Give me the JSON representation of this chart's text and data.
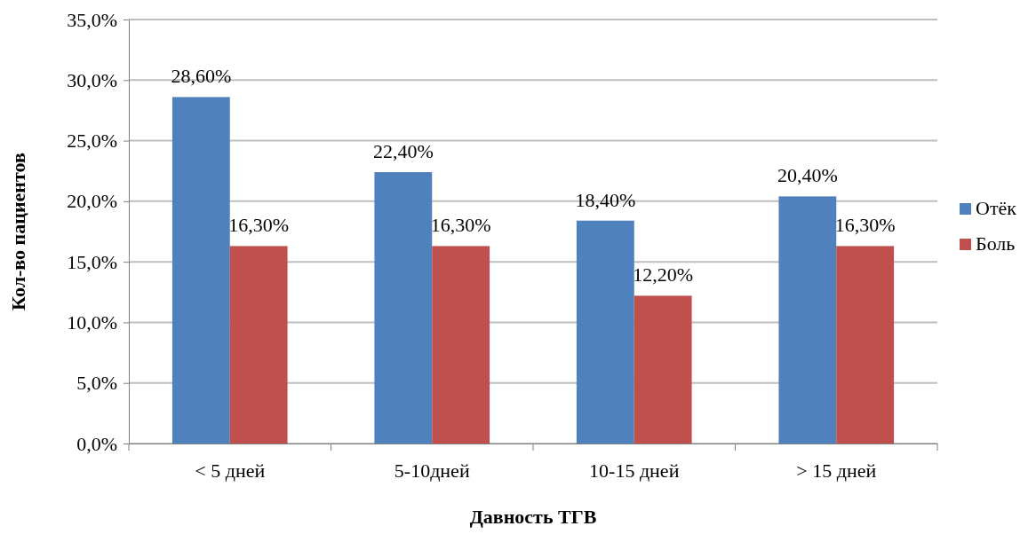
{
  "chart_data": {
    "type": "bar",
    "xlabel": "Давность ТГВ",
    "ylabel": "Кол-во пациентов",
    "categories": [
      "< 5 дней",
      "5-10дней",
      "10-15 дней",
      "> 15 дней"
    ],
    "series": [
      {
        "name": "Отёк",
        "color": "#4f81bd",
        "values": [
          28.6,
          22.4,
          18.4,
          20.4
        ],
        "value_labels": [
          "28,60%",
          "22,40%",
          "18,40%",
          "20,40%"
        ]
      },
      {
        "name": "Боль",
        "color": "#c0504d",
        "values": [
          16.3,
          16.3,
          12.2,
          16.3
        ],
        "value_labels": [
          "16,30%",
          "16,30%",
          "12,20%",
          "16,30%"
        ]
      }
    ],
    "ylim": [
      0,
      35
    ],
    "yticks": [
      {
        "value": 0,
        "label": "0,0%"
      },
      {
        "value": 5,
        "label": "5,0%"
      },
      {
        "value": 10,
        "label": "10,0%"
      },
      {
        "value": 15,
        "label": "15,0%"
      },
      {
        "value": 20,
        "label": "20,0%"
      },
      {
        "value": 25,
        "label": "25,0%"
      },
      {
        "value": 30,
        "label": "30,0%"
      },
      {
        "value": 35,
        "label": "35,0%"
      }
    ],
    "grid": "y",
    "legend": "right"
  }
}
